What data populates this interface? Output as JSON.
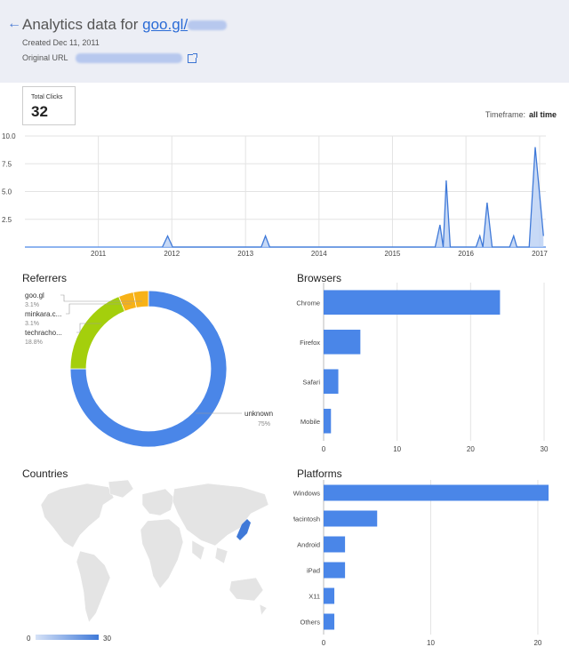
{
  "header": {
    "back_icon": "arrow-left-icon",
    "title_prefix": "Analytics data for ",
    "short_url": "goo.gl/",
    "created": "Created Dec 11, 2011",
    "original_url_label": "Original URL",
    "external_icon": "external-link-icon"
  },
  "summary": {
    "total_clicks_label": "Total Clicks",
    "total_clicks": "32"
  },
  "timeframe": {
    "label": "Timeframe:",
    "value": "all time"
  },
  "sections": {
    "referrers": "Referrers",
    "browsers": "Browsers",
    "countries": "Countries",
    "platforms": "Platforms"
  },
  "colors": {
    "accent": "#4a86e8",
    "referrer_unknown": "#4a86e8",
    "referrer_green": "#a4cf0c",
    "referrer_orange": "#f7b217"
  },
  "chart_data": [
    {
      "type": "area",
      "x_ticks": [
        "2011",
        "2012",
        "2013",
        "2014",
        "2015",
        "2016",
        "2017"
      ],
      "y_ticks": [
        "2.5",
        "5.0",
        "7.5",
        "10.0"
      ],
      "ylim": [
        0,
        10
      ],
      "points": [
        [
          "2011-11-15",
          0
        ],
        [
          "2011-12-11",
          1
        ],
        [
          "2012-01-05",
          0
        ],
        [
          "2013-03-20",
          0
        ],
        [
          "2013-04-10",
          1
        ],
        [
          "2013-05-01",
          0
        ],
        [
          "2015-08-01",
          0
        ],
        [
          "2015-08-25",
          2
        ],
        [
          "2015-09-10",
          0
        ],
        [
          "2015-09-25",
          6
        ],
        [
          "2015-10-15",
          0
        ],
        [
          "2016-02-20",
          0
        ],
        [
          "2016-03-10",
          1
        ],
        [
          "2016-03-25",
          0
        ],
        [
          "2016-04-15",
          4
        ],
        [
          "2016-05-10",
          0
        ],
        [
          "2016-08-05",
          0
        ],
        [
          "2016-08-25",
          1
        ],
        [
          "2016-09-10",
          0
        ],
        [
          "2016-11-10",
          0
        ],
        [
          "2016-12-10",
          9
        ],
        [
          "2017-01-20",
          1
        ]
      ]
    },
    {
      "type": "pie",
      "slices": [
        {
          "label": "unknown",
          "value": 75,
          "pct": "75%"
        },
        {
          "label": "techracho...",
          "value": 18.8,
          "pct": "18.8%"
        },
        {
          "label": "minkara.c...",
          "value": 3.1,
          "pct": "3.1%"
        },
        {
          "label": "goo.gl",
          "value": 3.1,
          "pct": "3.1%"
        }
      ]
    },
    {
      "type": "bar",
      "categories": [
        "Chrome",
        "Firefox",
        "Safari",
        "Mobile"
      ],
      "values": [
        24,
        5,
        2,
        1
      ],
      "x_ticks": [
        "0",
        "10",
        "20",
        "30"
      ],
      "xlim": [
        0,
        30
      ]
    },
    {
      "type": "bar",
      "categories": [
        "Windows",
        "Macintosh",
        "Android",
        "iPad",
        "X11",
        "Others"
      ],
      "values": [
        21,
        5,
        2,
        2,
        1,
        1
      ],
      "x_ticks": [
        "0",
        "10",
        "20"
      ],
      "xlim": [
        0,
        21
      ]
    },
    {
      "type": "map",
      "legend_min": "0",
      "legend_max": "30",
      "highlight_country": "Japan"
    }
  ]
}
